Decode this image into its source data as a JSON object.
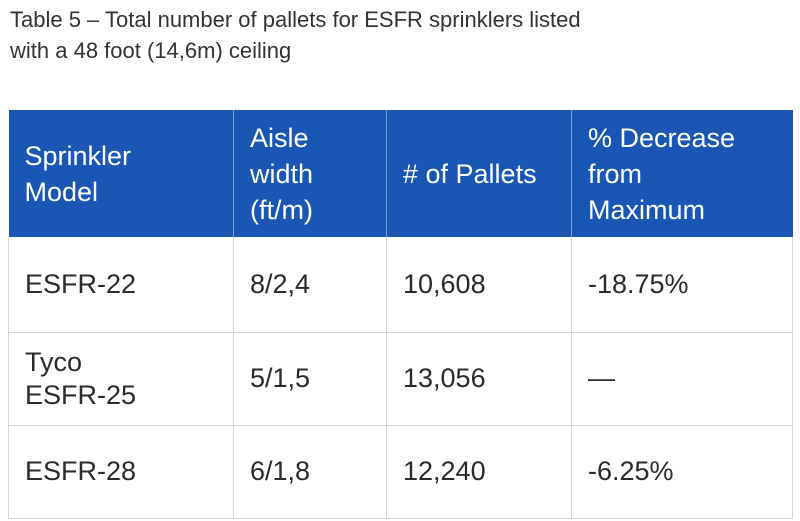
{
  "caption": {
    "line1": "Table 5 – Total number of pallets for ESFR sprinklers listed",
    "line2": "with a 48 foot (14,6m) ceiling"
  },
  "table": {
    "headers": [
      [
        "Sprinkler",
        "Model"
      ],
      [
        "Aisle",
        "width",
        "(ft/m)"
      ],
      [
        "# of Pallets"
      ],
      [
        "% Decrease",
        "from",
        "Maximum"
      ]
    ],
    "rows": [
      {
        "model": [
          "ESFR-22"
        ],
        "aisle": "8/2,4",
        "pallets": "10,608",
        "decrease": "-18.75%"
      },
      {
        "model": [
          "Tyco",
          "ESFR-25"
        ],
        "aisle": "5/1,5",
        "pallets": "13,056",
        "decrease": "—"
      },
      {
        "model": [
          "ESFR-28"
        ],
        "aisle": "6/1,8",
        "pallets": "12,240",
        "decrease": "-6.25%"
      }
    ]
  }
}
